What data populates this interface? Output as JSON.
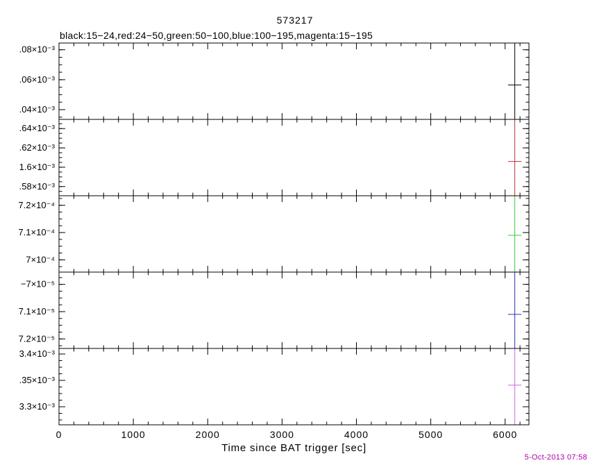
{
  "header": {
    "title": "573217",
    "subtitle": "black:15−24,red:24−50,green:50−100,blue:100−195,magenta:15−195"
  },
  "footer": {
    "timestamp": "5-Oct-2013 07:58",
    "timestamp_color": "#aa00aa"
  },
  "chart_data": {
    "type": "line",
    "subtype": "errorbar-multipanel-lightcurve",
    "title": "573217",
    "subtitle": "black:15−24,red:24−50,green:50−100,blue:100−195,magenta:15−195",
    "xlabel": "Time since BAT trigger [sec]",
    "xlim": [
      0,
      6320
    ],
    "x_major_ticks": [
      0,
      1000,
      2000,
      3000,
      4000,
      5000,
      6000
    ],
    "x_minor_step": 200,
    "grid": false,
    "legend_position": "subtitle",
    "panels": [
      {
        "series": "black 15−24 keV",
        "color": "#000000",
        "ylim": [
          0.0010335,
          0.0010845
        ],
        "yticks": [
          {
            "label": ".08×10⁻³",
            "value": 0.00108
          },
          {
            "label": ".06×10⁻³",
            "value": 0.00106
          },
          {
            "label": ".04×10⁻³",
            "value": 0.00104
          }
        ],
        "point": {
          "x": 6130,
          "y": 0.0010565,
          "xerr": 90,
          "yerr_spans_panel": true
        }
      },
      {
        "series": "red 24−50 keV",
        "color": "#bb3333",
        "ylim": [
          0.0015705,
          0.0016495
        ],
        "yticks": [
          {
            "label": ".64×10⁻³",
            "value": 0.00164
          },
          {
            "label": ".62×10⁻³",
            "value": 0.00162
          },
          {
            "label": "1.6×10⁻³",
            "value": 0.0016
          },
          {
            "label": ".58×10⁻³",
            "value": 0.00158
          }
        ],
        "point": {
          "x": 6130,
          "y": 0.001606,
          "xerr": 90,
          "yerr_spans_panel": true
        }
      },
      {
        "series": "green 50−100 keV",
        "color": "#33cc33",
        "ylim": [
          0.0006955,
          0.0007235
        ],
        "yticks": [
          {
            "label": "7.2×10⁻⁴",
            "value": 0.00072
          },
          {
            "label": "7.1×10⁻⁴",
            "value": 0.00071
          },
          {
            "label": "7×10⁻⁴",
            "value": 0.0007
          }
        ],
        "point": {
          "x": 6130,
          "y": 0.000709,
          "xerr": 90,
          "yerr_spans_panel": true
        }
      },
      {
        "series": "blue 100−195 keV",
        "color": "#3030b0",
        "ylim": [
          -7.235e-05,
          -6.955e-05
        ],
        "yticks": [
          {
            "label": "−7×10⁻⁵",
            "value": -7e-05
          },
          {
            "label": "7.1×10⁻⁵",
            "value": -7.1e-05
          },
          {
            "label": "7.2×10⁻⁵",
            "value": -7.2e-05
          }
        ],
        "point": {
          "x": 6130,
          "y": -7.11e-05,
          "xerr": 90,
          "yerr_spans_panel": true
        }
      },
      {
        "series": "magenta 15−195 keV",
        "color": "#cc66dd",
        "ylim": [
          0.0032658,
          0.0034105
        ],
        "yticks": [
          {
            "label": "3.4×10⁻³",
            "value": 0.0034
          },
          {
            "label": ".35×10⁻³",
            "value": 0.00335
          },
          {
            "label": "3.3×10⁻³",
            "value": 0.0033
          }
        ],
        "point": {
          "x": 6130,
          "y": 0.003341,
          "xerr": 90,
          "yerr_spans_panel": true
        }
      }
    ]
  }
}
